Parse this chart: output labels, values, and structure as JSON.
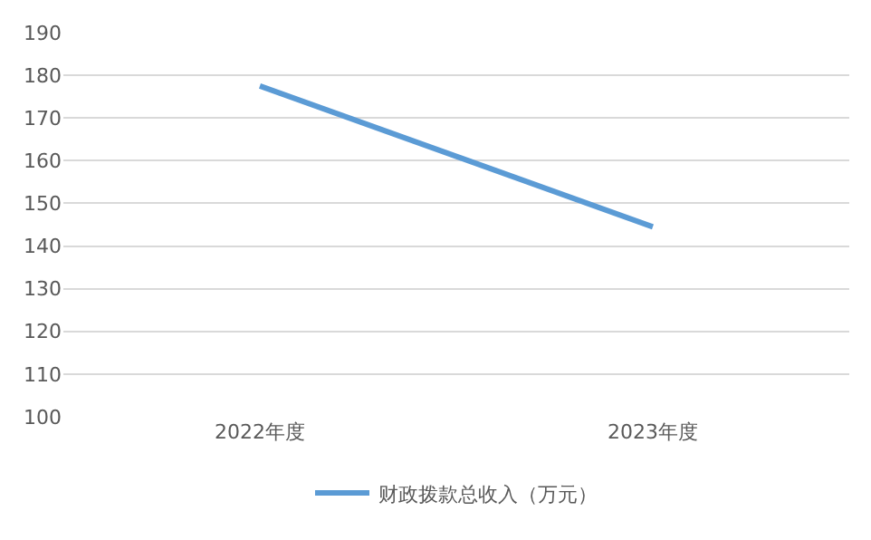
{
  "chart_data": {
    "type": "line",
    "categories": [
      "2022年度",
      "2023年度"
    ],
    "series": [
      {
        "name": "财政拨款总收入（万元）",
        "color": "#5b9bd5",
        "values": [
          177.5,
          144.5
        ]
      }
    ],
    "ylim": [
      100,
      190
    ],
    "yticks": [
      100,
      110,
      120,
      130,
      140,
      150,
      160,
      170,
      180,
      190
    ],
    "grid": "y",
    "legend": "bottom",
    "marker": "none",
    "line_style": "solid"
  }
}
